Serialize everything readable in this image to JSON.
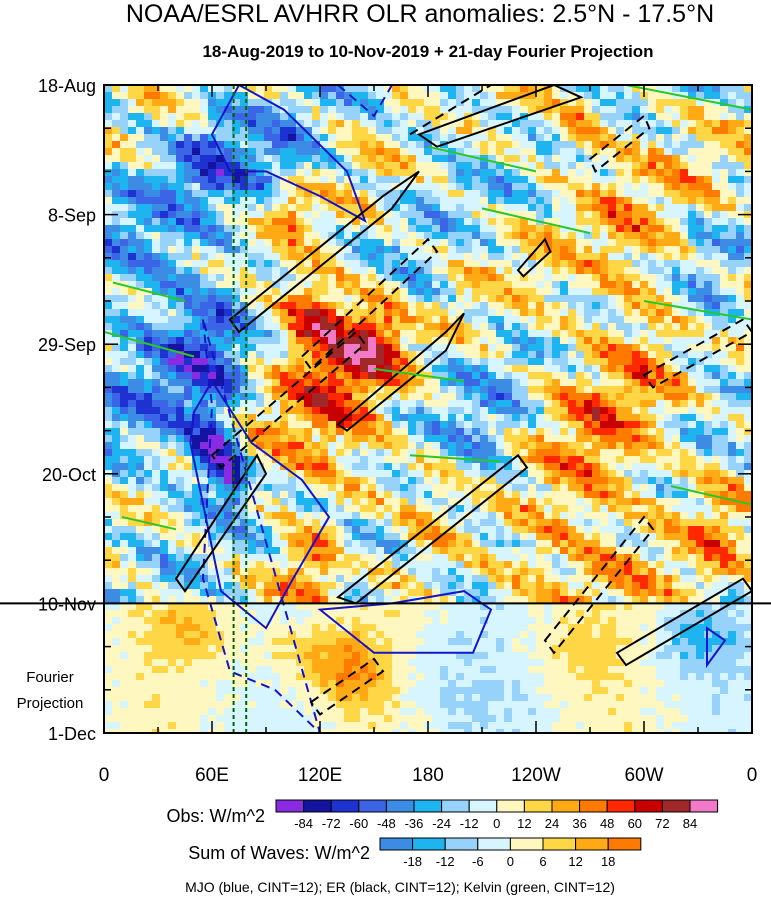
{
  "chart_data": {
    "type": "heatmap",
    "title": "NOAA/ESRL AVHRR OLR anomalies: 2.5°N - 17.5°N",
    "subtitle": "18-Aug-2019 to 10-Nov-2019 + 21-day Fourier Projection",
    "x_ticks": [
      "0",
      "60E",
      "120E",
      "180",
      "120W",
      "60W",
      "0"
    ],
    "x_tick_lon": [
      0,
      60,
      120,
      180,
      240,
      300,
      360
    ],
    "xlim": [
      0,
      360
    ],
    "y_ticks": [
      "18-Aug",
      "8-Sep",
      "29-Sep",
      "20-Oct",
      "10-Nov",
      "1-Dec"
    ],
    "y_tick_day": [
      0,
      21,
      42,
      63,
      84,
      105
    ],
    "ylim": [
      0,
      105
    ],
    "projection_start_day": 84,
    "projection_label": [
      "Fourier",
      "Projection"
    ],
    "reference_lines_lon": [
      72,
      79
    ],
    "obs_colorbar": {
      "label": "Obs: W/m^2",
      "levels": [
        "-84",
        "-72",
        "-60",
        "-48",
        "-36",
        "-24",
        "-12",
        "0",
        "12",
        "24",
        "36",
        "48",
        "60",
        "72",
        "84"
      ],
      "colors": [
        "#8a2be2",
        "#1414a0",
        "#1e32d2",
        "#3c64e6",
        "#3c8ce6",
        "#1eb4f0",
        "#96d2fa",
        "#d7f5ff",
        "#fff7c0",
        "#ffd746",
        "#ffaa14",
        "#ff7a00",
        "#ff2800",
        "#c80000",
        "#a02828",
        "#f07ac8"
      ]
    },
    "waves_colorbar": {
      "label": "Sum of Waves: W/m^2",
      "levels": [
        "-18",
        "-12",
        "-6",
        "0",
        "6",
        "12",
        "18"
      ],
      "colors": [
        "#3c8ce6",
        "#1eb4f0",
        "#96d2fa",
        "#d7f5ff",
        "#fff7c0",
        "#ffd746",
        "#ffaa14",
        "#ff7a00"
      ]
    },
    "footer": "MJO (blue, CINT=12); ER (black, CINT=12); Kelvin (green, CINT=12)",
    "series_colors": {
      "mjo": "#1414c8",
      "er": "#000000",
      "kelvin": "#28c828"
    },
    "anomaly_features": [
      {
        "lon": 60,
        "day": 60,
        "value": -70,
        "wlon": 10,
        "wday": 6
      },
      {
        "lon": 72,
        "day": 64,
        "value": -80,
        "wlon": 7,
        "wday": 4
      },
      {
        "lon": 58,
        "day": 45,
        "value": -40,
        "wlon": 25,
        "wday": 18
      },
      {
        "lon": 20,
        "day": 38,
        "value": -30,
        "wlon": 40,
        "wday": 30
      },
      {
        "lon": 62,
        "day": 12,
        "value": -35,
        "wlon": 20,
        "wday": 10
      },
      {
        "lon": 100,
        "day": 12,
        "value": -30,
        "wlon": 25,
        "wday": 10
      },
      {
        "lon": 115,
        "day": 37,
        "value": 55,
        "wlon": 18,
        "wday": 7
      },
      {
        "lon": 150,
        "day": 42,
        "value": 55,
        "wlon": 25,
        "wday": 7
      },
      {
        "lon": 105,
        "day": 20,
        "value": 45,
        "wlon": 10,
        "wday": 4
      },
      {
        "lon": 125,
        "day": 55,
        "value": 35,
        "wlon": 35,
        "wday": 15
      },
      {
        "lon": 115,
        "day": 78,
        "value": 25,
        "wlon": 20,
        "wday": 6
      },
      {
        "lon": 175,
        "day": 38,
        "value": -25,
        "wlon": 15,
        "wday": 12
      },
      {
        "lon": 215,
        "day": 60,
        "value": -30,
        "wlon": 25,
        "wday": 15
      },
      {
        "lon": 190,
        "day": 8,
        "value": -20,
        "wlon": 30,
        "wday": 10
      },
      {
        "lon": 235,
        "day": 75,
        "value": 25,
        "wlon": 40,
        "wday": 12
      },
      {
        "lon": 275,
        "day": 60,
        "value": 25,
        "wlon": 35,
        "wday": 20
      },
      {
        "lon": 265,
        "day": 8,
        "value": 35,
        "wlon": 15,
        "wday": 5
      },
      {
        "lon": 300,
        "day": 32,
        "value": 20,
        "wlon": 30,
        "wday": 20
      },
      {
        "lon": 335,
        "day": 40,
        "value": -25,
        "wlon": 20,
        "wday": 15
      },
      {
        "lon": 340,
        "day": 70,
        "value": 20,
        "wlon": 20,
        "wday": 12
      },
      {
        "lon": 140,
        "day": 76,
        "value": -40,
        "wlon": 12,
        "wday": 6
      },
      {
        "lon": 160,
        "day": 73,
        "value": -30,
        "wlon": 10,
        "wday": 5
      }
    ],
    "projection_features": [
      {
        "lon": 140,
        "day": 96,
        "value": 15,
        "wlon": 20,
        "wday": 6
      },
      {
        "lon": 115,
        "day": 92,
        "value": 12,
        "wlon": 30,
        "wday": 6
      },
      {
        "lon": 50,
        "day": 88,
        "value": 10,
        "wlon": 25,
        "wday": 5
      },
      {
        "lon": 250,
        "day": 92,
        "value": 8,
        "wlon": 40,
        "wday": 8
      },
      {
        "lon": 330,
        "day": 90,
        "value": -12,
        "wlon": 25,
        "wday": 6
      },
      {
        "lon": 200,
        "day": 96,
        "value": -6,
        "wlon": 60,
        "wday": 10
      }
    ],
    "contours": [
      {
        "wave": "mjo",
        "sign": "pos",
        "points": [
          [
            48,
            58
          ],
          [
            65,
            82
          ],
          [
            90,
            88
          ],
          [
            105,
            80
          ],
          [
            125,
            70
          ],
          [
            110,
            64
          ],
          [
            82,
            58
          ],
          [
            60,
            48
          ],
          [
            50,
            53
          ]
        ]
      },
      {
        "wave": "mjo",
        "sign": "pos",
        "points": [
          [
            60,
            8
          ],
          [
            75,
            0
          ],
          [
            100,
            4
          ],
          [
            135,
            14
          ],
          [
            145,
            22
          ],
          [
            120,
            18
          ],
          [
            90,
            14
          ],
          [
            70,
            14
          ]
        ]
      },
      {
        "wave": "mjo",
        "sign": "pos",
        "points": [
          [
            120,
            85
          ],
          [
            150,
            92
          ],
          [
            205,
            92
          ],
          [
            215,
            85
          ],
          [
            200,
            82
          ],
          [
            160,
            84
          ]
        ]
      },
      {
        "wave": "mjo",
        "sign": "pos",
        "points": [
          [
            335,
            94
          ],
          [
            345,
            90
          ],
          [
            335,
            88
          ]
        ]
      },
      {
        "wave": "mjo",
        "sign": "neg",
        "points": [
          [
            55,
            38
          ],
          [
            60,
            52
          ],
          [
            55,
            80
          ],
          [
            70,
            95
          ],
          [
            95,
            98
          ],
          [
            120,
            105
          ]
        ]
      },
      {
        "wave": "mjo",
        "sign": "neg",
        "points": [
          [
            130,
            0
          ],
          [
            150,
            5
          ],
          [
            160,
            0
          ]
        ]
      },
      {
        "wave": "er",
        "sign": "pos",
        "points": [
          [
            40,
            80
          ],
          [
            85,
            60
          ],
          [
            90,
            63
          ],
          [
            45,
            82
          ]
        ]
      },
      {
        "wave": "er",
        "sign": "pos",
        "points": [
          [
            70,
            38
          ],
          [
            155,
            18
          ],
          [
            175,
            14
          ],
          [
            160,
            20
          ],
          [
            75,
            40
          ]
        ]
      },
      {
        "wave": "er",
        "sign": "pos",
        "points": [
          [
            130,
            55
          ],
          [
            190,
            40
          ],
          [
            200,
            37
          ],
          [
            190,
            43
          ],
          [
            135,
            56
          ]
        ]
      },
      {
        "wave": "er",
        "sign": "pos",
        "points": [
          [
            130,
            83
          ],
          [
            230,
            60
          ],
          [
            235,
            62
          ],
          [
            140,
            84
          ]
        ]
      },
      {
        "wave": "er",
        "sign": "pos",
        "points": [
          [
            175,
            8
          ],
          [
            250,
            0
          ],
          [
            265,
            2
          ],
          [
            185,
            10
          ]
        ]
      },
      {
        "wave": "er",
        "sign": "pos",
        "points": [
          [
            230,
            30
          ],
          [
            245,
            25
          ],
          [
            248,
            27
          ],
          [
            233,
            31
          ]
        ]
      },
      {
        "wave": "er",
        "sign": "pos",
        "points": [
          [
            285,
            92
          ],
          [
            355,
            80
          ],
          [
            360,
            82
          ],
          [
            290,
            94
          ]
        ]
      },
      {
        "wave": "er",
        "sign": "neg",
        "points": [
          [
            60,
            60
          ],
          [
            140,
            40
          ],
          [
            145,
            42
          ],
          [
            65,
            62
          ]
        ]
      },
      {
        "wave": "er",
        "sign": "neg",
        "points": [
          [
            110,
            44
          ],
          [
            180,
            25
          ],
          [
            185,
            27
          ],
          [
            115,
            46
          ]
        ]
      },
      {
        "wave": "er",
        "sign": "neg",
        "points": [
          [
            170,
            8
          ],
          [
            215,
            0
          ]
        ]
      },
      {
        "wave": "er",
        "sign": "neg",
        "points": [
          [
            115,
            100
          ],
          [
            150,
            93
          ],
          [
            155,
            95
          ],
          [
            120,
            102
          ]
        ]
      },
      {
        "wave": "er",
        "sign": "neg",
        "points": [
          [
            245,
            90
          ],
          [
            300,
            70
          ],
          [
            305,
            72
          ],
          [
            250,
            92
          ]
        ]
      },
      {
        "wave": "er",
        "sign": "neg",
        "points": [
          [
            300,
            47
          ],
          [
            355,
            38
          ],
          [
            360,
            40
          ],
          [
            305,
            49
          ]
        ]
      },
      {
        "wave": "er",
        "sign": "neg",
        "points": [
          [
            270,
            12
          ],
          [
            300,
            5
          ],
          [
            303,
            7
          ],
          [
            273,
            14
          ]
        ]
      },
      {
        "wave": "kelvin",
        "sign": "pos",
        "points": [
          [
            5,
            32
          ],
          [
            45,
            35
          ]
        ]
      },
      {
        "wave": "kelvin",
        "sign": "pos",
        "points": [
          [
            0,
            40
          ],
          [
            50,
            44
          ]
        ]
      },
      {
        "wave": "kelvin",
        "sign": "pos",
        "points": [
          [
            180,
            10
          ],
          [
            240,
            14
          ]
        ]
      },
      {
        "wave": "kelvin",
        "sign": "pos",
        "points": [
          [
            210,
            20
          ],
          [
            270,
            24
          ]
        ]
      },
      {
        "wave": "kelvin",
        "sign": "pos",
        "points": [
          [
            290,
            0
          ],
          [
            360,
            4
          ]
        ]
      },
      {
        "wave": "kelvin",
        "sign": "pos",
        "points": [
          [
            300,
            35
          ],
          [
            360,
            38
          ]
        ]
      },
      {
        "wave": "kelvin",
        "sign": "pos",
        "points": [
          [
            315,
            65
          ],
          [
            360,
            68
          ]
        ]
      },
      {
        "wave": "kelvin",
        "sign": "pos",
        "points": [
          [
            10,
            70
          ],
          [
            40,
            72
          ]
        ]
      },
      {
        "wave": "kelvin",
        "sign": "pos",
        "points": [
          [
            150,
            46
          ],
          [
            200,
            48
          ]
        ]
      },
      {
        "wave": "kelvin",
        "sign": "pos",
        "points": [
          [
            170,
            60
          ],
          [
            220,
            61
          ]
        ]
      }
    ]
  }
}
